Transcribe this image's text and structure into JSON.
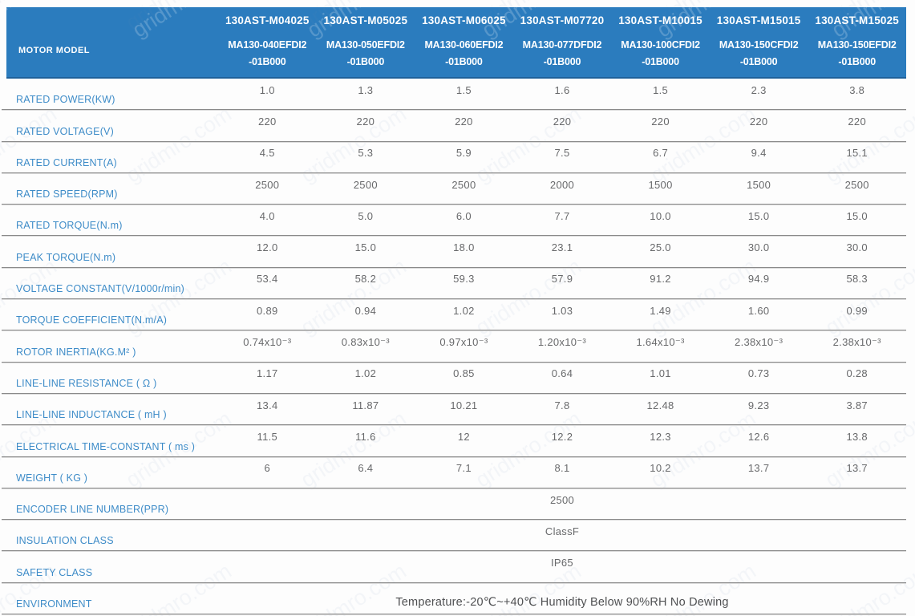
{
  "watermark": {
    "text": "gridmro.com"
  },
  "colors": {
    "header_bg": "#2b7cbe",
    "header_text": "#ffffff",
    "row_label": "#3e8cc8",
    "value_text": "#68696b",
    "separator": "#8a8a8a"
  },
  "table": {
    "header": {
      "row_label": "MOTOR MODEL",
      "columns": [
        {
          "series": "130AST-M04025",
          "code_line1": "MA130-040EFDI2",
          "code_line2": "-01B000"
        },
        {
          "series": "130AST-M05025",
          "code_line1": "MA130-050EFDI2",
          "code_line2": "-01B000"
        },
        {
          "series": "130AST-M06025",
          "code_line1": "MA130-060EFDI2",
          "code_line2": "-01B000"
        },
        {
          "series": "130AST-M07720",
          "code_line1": "MA130-077DFDI2",
          "code_line2": "-01B000"
        },
        {
          "series": "130AST-M10015",
          "code_line1": "MA130-100CFDI2",
          "code_line2": "-01B000"
        },
        {
          "series": "130AST-M15015",
          "code_line1": "MA130-150CFDI2",
          "code_line2": "-01B000"
        },
        {
          "series": "130AST-M15025",
          "code_line1": "MA130-150EFDI2",
          "code_line2": "-01B000"
        }
      ]
    },
    "rows": [
      {
        "label": "RATED POWER(KW)",
        "values": [
          "1.0",
          "1.3",
          "1.5",
          "1.6",
          "1.5",
          "2.3",
          "3.8"
        ]
      },
      {
        "label": "RATED VOLTAGE(V)",
        "values": [
          "220",
          "220",
          "220",
          "220",
          "220",
          "220",
          "220"
        ]
      },
      {
        "label": "RATED CURRENT(A)",
        "values": [
          "4.5",
          "5.3",
          "5.9",
          "7.5",
          "6.7",
          "9.4",
          "15.1"
        ]
      },
      {
        "label": "RATED SPEED(RPM)",
        "values": [
          "2500",
          "2500",
          "2500",
          "2000",
          "1500",
          "1500",
          "2500"
        ]
      },
      {
        "label": "RATED TORQUE(N.m)",
        "values": [
          "4.0",
          "5.0",
          "6.0",
          "7.7",
          "10.0",
          "15.0",
          "15.0"
        ]
      },
      {
        "label": "PEAK TORQUE(N.m)",
        "values": [
          "12.0",
          "15.0",
          "18.0",
          "23.1",
          "25.0",
          "30.0",
          "30.0"
        ]
      },
      {
        "label": "VOLTAGE CONSTANT(V/1000r/min)",
        "values": [
          "53.4",
          "58.2",
          "59.3",
          "57.9",
          "91.2",
          "94.9",
          "58.3"
        ]
      },
      {
        "label": "TORQUE COEFFICIENT(N.m/A)",
        "values": [
          "0.89",
          "0.94",
          "1.02",
          "1.03",
          "1.49",
          "1.60",
          "0.99"
        ]
      },
      {
        "label": "ROTOR INERTIA(KG.M² )",
        "values": [
          "0.74x10⁻³",
          "0.83x10⁻³",
          "0.97x10⁻³",
          "1.20x10⁻³",
          "1.64x10⁻³",
          "2.38x10⁻³",
          "2.38x10⁻³"
        ]
      },
      {
        "label": "LINE-LINE RESISTANCE ( Ω )",
        "values": [
          "1.17",
          "1.02",
          "0.85",
          "0.64",
          "1.01",
          "0.73",
          "0.28"
        ]
      },
      {
        "label": "LINE-LINE INDUCTANCE ( mH )",
        "values": [
          "13.4",
          "11.87",
          "10.21",
          "7.8",
          "12.48",
          "9.23",
          "3.87"
        ]
      },
      {
        "label": "ELECTRICAL TIME-CONSTANT ( ms )",
        "values": [
          "11.5",
          "11.6",
          "12",
          "12.2",
          "12.3",
          "12.6",
          "13.8"
        ]
      },
      {
        "label": "WEIGHT ( KG )",
        "values": [
          "6",
          "6.4",
          "7.1",
          "8.1",
          "10.2",
          "13.7",
          "13.7"
        ]
      },
      {
        "label": "ENCODER LINE NUMBER(PPR)",
        "span_value": "2500"
      },
      {
        "label": "INSULATION CLASS",
        "span_value": "ClassF"
      },
      {
        "label": "SAFETY CLASS",
        "span_value": "IP65"
      },
      {
        "label": "ENVIRONMENT",
        "span_value": "Temperature:-20℃~+40℃  Humidity Below 90%RH No Dewing",
        "large": true
      }
    ]
  }
}
